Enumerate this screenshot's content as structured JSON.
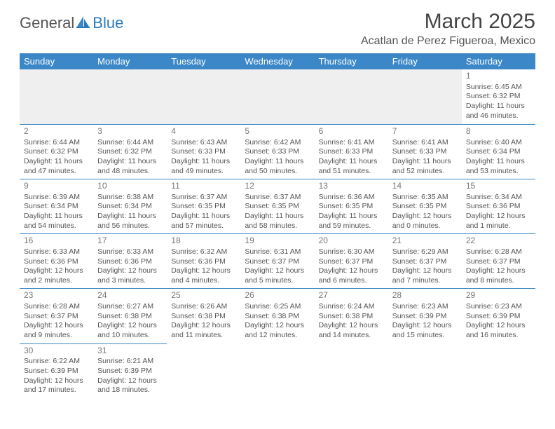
{
  "logo": {
    "text_dark": "General",
    "text_blue": "Blue"
  },
  "title": "March 2025",
  "location": "Acatlan de Perez Figueroa, Mexico",
  "colors": {
    "header_bg": "#3b87c8",
    "header_text": "#ffffff",
    "border": "#3b87c8",
    "empty_bg": "#efefef",
    "logo_blue": "#2b7bbd",
    "text": "#555555"
  },
  "weekdays": [
    "Sunday",
    "Monday",
    "Tuesday",
    "Wednesday",
    "Thursday",
    "Friday",
    "Saturday"
  ],
  "weeks": [
    [
      null,
      null,
      null,
      null,
      null,
      null,
      {
        "d": "1",
        "sr": "6:45 AM",
        "ss": "6:32 PM",
        "dl": "11 hours and 46 minutes."
      }
    ],
    [
      {
        "d": "2",
        "sr": "6:44 AM",
        "ss": "6:32 PM",
        "dl": "11 hours and 47 minutes."
      },
      {
        "d": "3",
        "sr": "6:44 AM",
        "ss": "6:32 PM",
        "dl": "11 hours and 48 minutes."
      },
      {
        "d": "4",
        "sr": "6:43 AM",
        "ss": "6:33 PM",
        "dl": "11 hours and 49 minutes."
      },
      {
        "d": "5",
        "sr": "6:42 AM",
        "ss": "6:33 PM",
        "dl": "11 hours and 50 minutes."
      },
      {
        "d": "6",
        "sr": "6:41 AM",
        "ss": "6:33 PM",
        "dl": "11 hours and 51 minutes."
      },
      {
        "d": "7",
        "sr": "6:41 AM",
        "ss": "6:33 PM",
        "dl": "11 hours and 52 minutes."
      },
      {
        "d": "8",
        "sr": "6:40 AM",
        "ss": "6:34 PM",
        "dl": "11 hours and 53 minutes."
      }
    ],
    [
      {
        "d": "9",
        "sr": "6:39 AM",
        "ss": "6:34 PM",
        "dl": "11 hours and 54 minutes."
      },
      {
        "d": "10",
        "sr": "6:38 AM",
        "ss": "6:34 PM",
        "dl": "11 hours and 56 minutes."
      },
      {
        "d": "11",
        "sr": "6:37 AM",
        "ss": "6:35 PM",
        "dl": "11 hours and 57 minutes."
      },
      {
        "d": "12",
        "sr": "6:37 AM",
        "ss": "6:35 PM",
        "dl": "11 hours and 58 minutes."
      },
      {
        "d": "13",
        "sr": "6:36 AM",
        "ss": "6:35 PM",
        "dl": "11 hours and 59 minutes."
      },
      {
        "d": "14",
        "sr": "6:35 AM",
        "ss": "6:35 PM",
        "dl": "12 hours and 0 minutes."
      },
      {
        "d": "15",
        "sr": "6:34 AM",
        "ss": "6:36 PM",
        "dl": "12 hours and 1 minute."
      }
    ],
    [
      {
        "d": "16",
        "sr": "6:33 AM",
        "ss": "6:36 PM",
        "dl": "12 hours and 2 minutes."
      },
      {
        "d": "17",
        "sr": "6:33 AM",
        "ss": "6:36 PM",
        "dl": "12 hours and 3 minutes."
      },
      {
        "d": "18",
        "sr": "6:32 AM",
        "ss": "6:36 PM",
        "dl": "12 hours and 4 minutes."
      },
      {
        "d": "19",
        "sr": "6:31 AM",
        "ss": "6:37 PM",
        "dl": "12 hours and 5 minutes."
      },
      {
        "d": "20",
        "sr": "6:30 AM",
        "ss": "6:37 PM",
        "dl": "12 hours and 6 minutes."
      },
      {
        "d": "21",
        "sr": "6:29 AM",
        "ss": "6:37 PM",
        "dl": "12 hours and 7 minutes."
      },
      {
        "d": "22",
        "sr": "6:28 AM",
        "ss": "6:37 PM",
        "dl": "12 hours and 8 minutes."
      }
    ],
    [
      {
        "d": "23",
        "sr": "6:28 AM",
        "ss": "6:37 PM",
        "dl": "12 hours and 9 minutes."
      },
      {
        "d": "24",
        "sr": "6:27 AM",
        "ss": "6:38 PM",
        "dl": "12 hours and 10 minutes."
      },
      {
        "d": "25",
        "sr": "6:26 AM",
        "ss": "6:38 PM",
        "dl": "12 hours and 11 minutes."
      },
      {
        "d": "26",
        "sr": "6:25 AM",
        "ss": "6:38 PM",
        "dl": "12 hours and 12 minutes."
      },
      {
        "d": "27",
        "sr": "6:24 AM",
        "ss": "6:38 PM",
        "dl": "12 hours and 14 minutes."
      },
      {
        "d": "28",
        "sr": "6:23 AM",
        "ss": "6:39 PM",
        "dl": "12 hours and 15 minutes."
      },
      {
        "d": "29",
        "sr": "6:23 AM",
        "ss": "6:39 PM",
        "dl": "12 hours and 16 minutes."
      }
    ],
    [
      {
        "d": "30",
        "sr": "6:22 AM",
        "ss": "6:39 PM",
        "dl": "12 hours and 17 minutes."
      },
      {
        "d": "31",
        "sr": "6:21 AM",
        "ss": "6:39 PM",
        "dl": "12 hours and 18 minutes."
      },
      null,
      null,
      null,
      null,
      null
    ]
  ],
  "labels": {
    "sunrise": "Sunrise:",
    "sunset": "Sunset:",
    "daylight": "Daylight:"
  }
}
